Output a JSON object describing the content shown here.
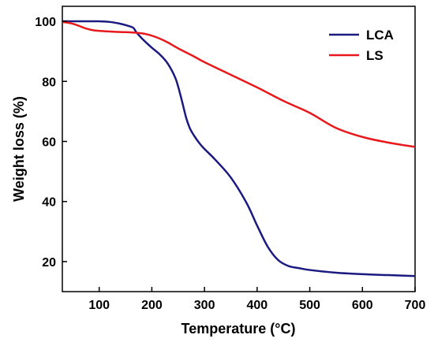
{
  "chart_data": {
    "type": "line",
    "title": "",
    "xlabel": "Temperature (°C)",
    "ylabel": "Weight loss (%)",
    "xlim": [
      30,
      700
    ],
    "ylim": [
      10,
      105
    ],
    "xticks": [
      100,
      200,
      300,
      400,
      500,
      600,
      700
    ],
    "yticks": [
      20,
      40,
      60,
      80,
      100
    ],
    "grid": false,
    "legend_position": "top-right",
    "series": [
      {
        "name": "LCA",
        "color": "#1a1a80",
        "x": [
          30,
          50,
          80,
          100,
          120,
          140,
          155,
          165,
          170,
          180,
          190,
          200,
          215,
          230,
          245,
          255,
          265,
          272,
          280,
          290,
          300,
          320,
          350,
          380,
          400,
          420,
          440,
          460,
          480,
          500,
          550,
          600,
          650,
          700
        ],
        "y": [
          100,
          100,
          100,
          100,
          99.8,
          99.2,
          98.5,
          97.8,
          96.5,
          94.5,
          92.8,
          91.2,
          89,
          86,
          81,
          75,
          68,
          64.5,
          62,
          59.5,
          57.5,
          54,
          48,
          39.5,
          32,
          25,
          20.5,
          18.5,
          17.8,
          17.2,
          16.3,
          15.8,
          15.5,
          15.2
        ]
      },
      {
        "name": "LS",
        "color": "#e8191c",
        "x": [
          30,
          45,
          60,
          75,
          90,
          110,
          130,
          150,
          170,
          190,
          210,
          230,
          250,
          280,
          300,
          350,
          400,
          450,
          500,
          550,
          600,
          650,
          700
        ],
        "y": [
          99.8,
          99.4,
          98.6,
          97.6,
          97,
          96.7,
          96.5,
          96.4,
          96.2,
          95.7,
          94.6,
          93,
          91,
          88.3,
          86.4,
          82.2,
          78,
          73.5,
          69.5,
          64.5,
          61.5,
          59.6,
          58.2
        ]
      }
    ]
  }
}
